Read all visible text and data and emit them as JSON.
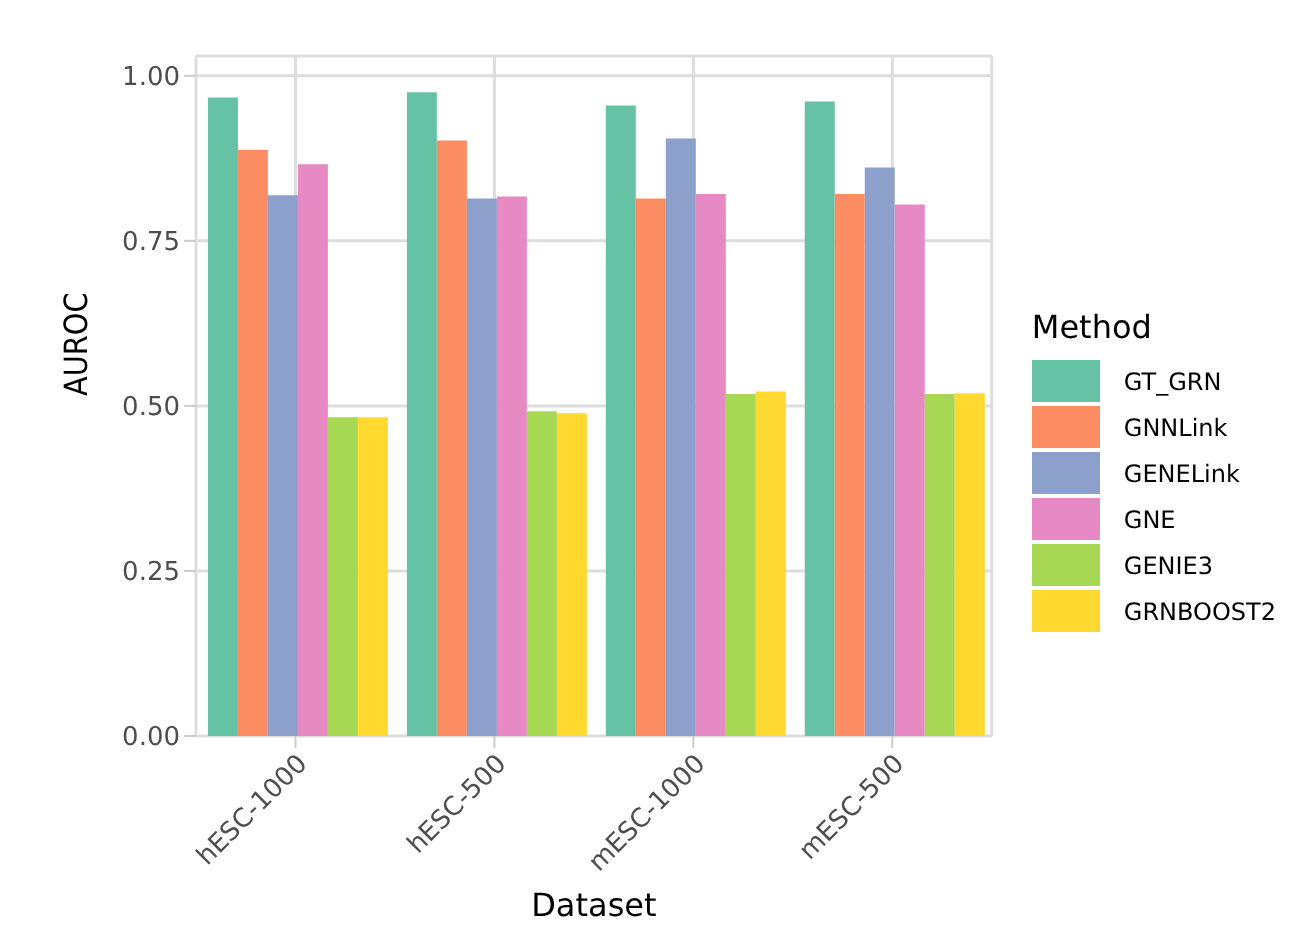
{
  "chart_data": {
    "type": "bar",
    "xlabel": "Dataset",
    "ylabel": "AUROC",
    "legend_title": "Method",
    "categories": [
      "hESC-1000",
      "hESC-500",
      "mESC-1000",
      "mESC-500"
    ],
    "series": [
      {
        "name": "GT_GRN",
        "color": "#66c2a5",
        "values": [
          0.967,
          0.975,
          0.955,
          0.961
        ]
      },
      {
        "name": "GNNLink",
        "color": "#fc8d62",
        "values": [
          0.888,
          0.902,
          0.814,
          0.821
        ]
      },
      {
        "name": "GENELink",
        "color": "#8da0cb",
        "values": [
          0.819,
          0.814,
          0.905,
          0.861
        ]
      },
      {
        "name": "GNE",
        "color": "#e78ac3",
        "values": [
          0.866,
          0.817,
          0.821,
          0.805
        ]
      },
      {
        "name": "GENIE3",
        "color": "#a6d854",
        "values": [
          0.483,
          0.492,
          0.518,
          0.518
        ]
      },
      {
        "name": "GRNBOOST2",
        "color": "#ffd92f",
        "values": [
          0.483,
          0.489,
          0.522,
          0.519
        ]
      }
    ],
    "ylim": [
      0,
      1.03
    ],
    "yticks": [
      {
        "value": 0,
        "label": "0.00"
      },
      {
        "value": 0.25,
        "label": "0.25"
      },
      {
        "value": 0.5,
        "label": "0.50"
      },
      {
        "value": 0.75,
        "label": "0.75"
      },
      {
        "value": 1,
        "label": "1.00"
      }
    ],
    "grid": true,
    "legend": "right"
  }
}
